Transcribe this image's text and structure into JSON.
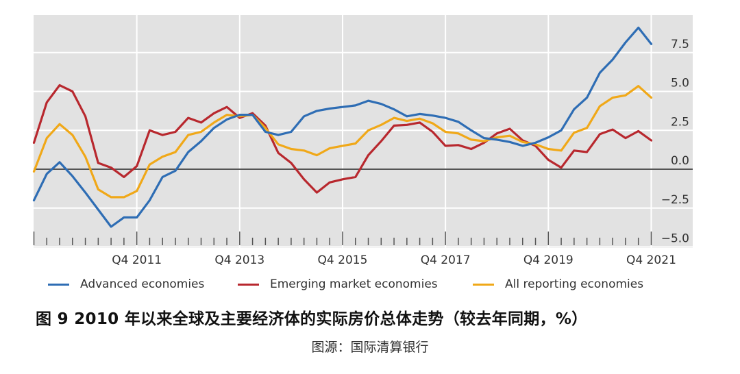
{
  "chart_data": {
    "type": "line",
    "title": "",
    "xlabel": "",
    "ylabel": "",
    "ylim": [
      -5.0,
      10.0
    ],
    "y_ticks": [
      7.5,
      5.0,
      2.5,
      0.0,
      -2.5,
      -5.0
    ],
    "y_tick_labels": [
      "7.5",
      "5.0",
      "2.5",
      "0.0",
      "−2.5",
      "−5.0"
    ],
    "y_axis_position": "right",
    "x_tick_labels": [
      "Q4 2011",
      "Q4 2013",
      "Q4 2015",
      "Q4 2017",
      "Q4 2019",
      "Q4 2021"
    ],
    "x_range": [
      "Q4 2009",
      "Q4 2021"
    ],
    "grid": true,
    "legend_position": "bottom",
    "x": [
      "Q4 2009",
      "Q1 2010",
      "Q2 2010",
      "Q3 2010",
      "Q4 2010",
      "Q1 2011",
      "Q2 2011",
      "Q3 2011",
      "Q4 2011",
      "Q1 2012",
      "Q2 2012",
      "Q3 2012",
      "Q4 2012",
      "Q1 2013",
      "Q2 2013",
      "Q3 2013",
      "Q4 2013",
      "Q1 2014",
      "Q2 2014",
      "Q3 2014",
      "Q4 2014",
      "Q1 2015",
      "Q2 2015",
      "Q3 2015",
      "Q4 2015",
      "Q1 2016",
      "Q2 2016",
      "Q3 2016",
      "Q4 2016",
      "Q1 2017",
      "Q2 2017",
      "Q3 2017",
      "Q4 2017",
      "Q1 2018",
      "Q2 2018",
      "Q3 2018",
      "Q4 2018",
      "Q1 2019",
      "Q2 2019",
      "Q3 2019",
      "Q4 2019",
      "Q1 2020",
      "Q2 2020",
      "Q3 2020",
      "Q4 2020",
      "Q1 2021",
      "Q2 2021",
      "Q3 2021",
      "Q4 2021"
    ],
    "series": [
      {
        "name": "Advanced economies",
        "color": "#2e6db4",
        "values": [
          -2.0,
          -0.3,
          0.45,
          -0.45,
          -1.5,
          -2.6,
          -3.7,
          -3.1,
          -3.1,
          -2.0,
          -0.5,
          -0.1,
          1.1,
          1.8,
          2.65,
          3.2,
          3.5,
          3.5,
          2.4,
          2.2,
          2.4,
          3.4,
          3.75,
          3.9,
          4.0,
          4.1,
          4.4,
          4.2,
          3.85,
          3.4,
          3.55,
          3.45,
          3.3,
          3.05,
          2.5,
          2.0,
          1.9,
          1.75,
          1.5,
          1.7,
          2.05,
          2.5,
          3.85,
          4.6,
          6.2,
          7.05,
          8.15,
          9.1,
          8.05
        ]
      },
      {
        "name": "Emerging market economies",
        "color": "#b8282e",
        "values": [
          1.7,
          4.3,
          5.4,
          5.0,
          3.4,
          0.4,
          0.1,
          -0.5,
          0.2,
          2.5,
          2.2,
          2.4,
          3.3,
          3.0,
          3.6,
          4.0,
          3.3,
          3.6,
          2.8,
          1.05,
          0.4,
          -0.65,
          -1.5,
          -0.85,
          -0.65,
          -0.5,
          0.9,
          1.8,
          2.8,
          2.85,
          3.0,
          2.4,
          1.5,
          1.55,
          1.3,
          1.7,
          2.3,
          2.6,
          1.85,
          1.5,
          0.6,
          0.1,
          1.2,
          1.1,
          2.25,
          2.55,
          2.0,
          2.45,
          1.85
        ]
      },
      {
        "name": "All reporting economies",
        "color": "#f0a818",
        "values": [
          -0.15,
          2.0,
          2.9,
          2.2,
          0.8,
          -1.3,
          -1.8,
          -1.8,
          -1.4,
          0.3,
          0.8,
          1.1,
          2.2,
          2.4,
          3.0,
          3.5,
          3.4,
          3.5,
          2.65,
          1.6,
          1.3,
          1.2,
          0.9,
          1.35,
          1.5,
          1.65,
          2.5,
          2.85,
          3.3,
          3.1,
          3.25,
          2.95,
          2.4,
          2.3,
          1.9,
          1.8,
          2.05,
          2.15,
          1.75,
          1.6,
          1.3,
          1.2,
          2.35,
          2.65,
          4.05,
          4.6,
          4.75,
          5.35,
          4.6
        ]
      }
    ]
  },
  "legend": {
    "items": [
      {
        "label": "Advanced economies",
        "color": "#2e6db4"
      },
      {
        "label": "Emerging market economies",
        "color": "#b8282e"
      },
      {
        "label": "All reporting economies",
        "color": "#f0a818"
      }
    ]
  },
  "caption": {
    "title": "图 9 2010 年以来全球及主要经济体的实际房价总体走势（较去年同期，%）",
    "source": "图源：国际清算银行"
  },
  "style": {
    "plot_background": "#e2e2e2",
    "gridline": "#ffffff",
    "zero_line": "#555555"
  }
}
